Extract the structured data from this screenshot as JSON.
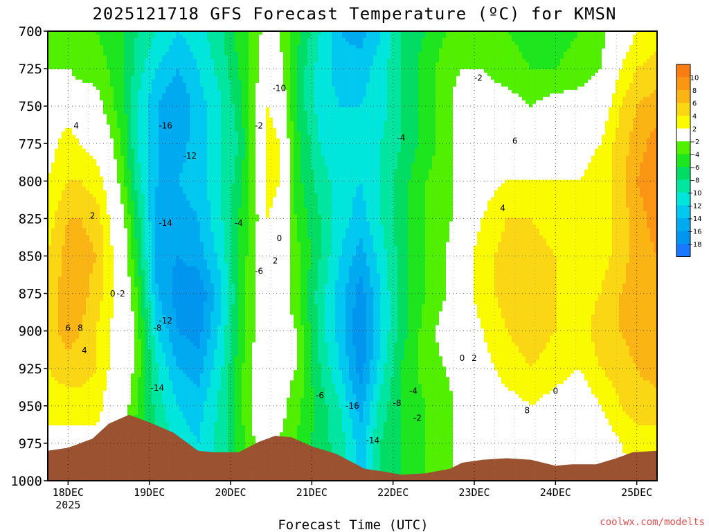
{
  "chart_data": {
    "type": "heatmap",
    "title": "2025121718 GFS Forecast Temperature (ºC) for KMSN",
    "xlabel": "Forecast Time (UTC)",
    "ylabel": "",
    "credit": "coolwx.com/modelts",
    "y_ticks": [
      "700",
      "725",
      "750",
      "775",
      "800",
      "825",
      "850",
      "875",
      "900",
      "925",
      "950",
      "975",
      "1000"
    ],
    "ylim": [
      1000,
      700
    ],
    "x_ticks": [
      "18DEC",
      "19DEC",
      "20DEC",
      "21DEC",
      "22DEC",
      "23DEC",
      "24DEC",
      "25DEC"
    ],
    "x_tick_sublabels": [
      "2025",
      "",
      "",
      "",
      "",
      "",
      "",
      ""
    ],
    "xlim_days": [
      17.75,
      25.25
    ],
    "grid": true,
    "colorbar": {
      "tick_labels": [
        "10",
        "8",
        "6",
        "4",
        "2",
        "−2",
        "−4",
        "−6",
        "−8",
        "−10",
        "−12",
        "−14",
        "−16",
        "−18"
      ],
      "bands": [
        {
          "min": 10,
          "max": 12,
          "color": "#fa7d14"
        },
        {
          "min": 8,
          "max": 10,
          "color": "#fa9614"
        },
        {
          "min": 6,
          "max": 8,
          "color": "#fab414"
        },
        {
          "min": 4,
          "max": 6,
          "color": "#fad614"
        },
        {
          "min": 2,
          "max": 4,
          "color": "#fafa00"
        },
        {
          "min": -2,
          "max": 2,
          "color": "#ffffff"
        },
        {
          "min": -4,
          "max": -2,
          "color": "#50f000"
        },
        {
          "min": -6,
          "max": -4,
          "color": "#1ee61e"
        },
        {
          "min": -8,
          "max": -6,
          "color": "#00dc64"
        },
        {
          "min": -10,
          "max": -8,
          "color": "#00e6a0"
        },
        {
          "min": -12,
          "max": -10,
          "color": "#00e6dc"
        },
        {
          "min": -14,
          "max": -12,
          "color": "#00c8f0"
        },
        {
          "min": -16,
          "max": -14,
          "color": "#00aaf0"
        },
        {
          "min": -18,
          "max": -16,
          "color": "#0096f0"
        },
        {
          "min": -20,
          "max": -18,
          "color": "#1a78ff"
        }
      ]
    },
    "terrain_color": "#9b5230",
    "freezing_contour_color": "#c0207a",
    "contour_labels": [
      "4",
      "2",
      "0",
      "-2",
      "-16",
      "-12",
      "-14",
      "-8",
      "-4",
      "-6",
      "-10",
      "-2",
      "0",
      "2",
      "4",
      "6",
      "8",
      "-14",
      "-16",
      "-6",
      "-8",
      "-4",
      "-2",
      "0",
      "2",
      "4",
      "6",
      "8",
      "0",
      "-4",
      "-2",
      "-12",
      "-14"
    ],
    "profiles": [
      {
        "day": 17.75,
        "temps": [
          -4,
          -2,
          0,
          1,
          2,
          3,
          4,
          5,
          5,
          4,
          3,
          1,
          0
        ]
      },
      {
        "day": 18.0,
        "temps": [
          -4,
          -2,
          1,
          3,
          4,
          6,
          7,
          7,
          7,
          5,
          3,
          1,
          0
        ]
      },
      {
        "day": 18.15,
        "temps": [
          -4,
          -3,
          0,
          2,
          4,
          6,
          7,
          7,
          6,
          5,
          3,
          1,
          0
        ]
      },
      {
        "day": 18.35,
        "temps": [
          -4,
          -3,
          -1,
          1,
          3,
          5,
          6,
          5,
          4,
          4,
          3,
          1,
          0
        ]
      },
      {
        "day": 18.5,
        "temps": [
          -5,
          -4,
          -3,
          -1,
          1,
          2,
          3,
          3,
          2,
          2,
          1,
          0,
          -1
        ]
      },
      {
        "day": 18.7,
        "temps": [
          -6,
          -6,
          -6,
          -5,
          -4,
          -2,
          -1,
          0,
          1,
          0,
          -1,
          -2,
          -2
        ]
      },
      {
        "day": 18.85,
        "temps": [
          -8,
          -9,
          -10,
          -10,
          -9,
          -7,
          -6,
          -4,
          -3,
          -3,
          -4,
          -5,
          -5
        ]
      },
      {
        "day": 19.1,
        "temps": [
          -10,
          -12,
          -14,
          -14,
          -14,
          -15,
          -15,
          -14,
          -12,
          -10,
          -9,
          -8,
          -8
        ]
      },
      {
        "day": 19.35,
        "temps": [
          -12,
          -14,
          -16,
          -15,
          -14,
          -15,
          -16,
          -17,
          -16,
          -14,
          -12,
          -11,
          -11
        ]
      },
      {
        "day": 19.6,
        "temps": [
          -11,
          -12,
          -13,
          -13,
          -13,
          -14,
          -15,
          -18,
          -17,
          -15,
          -13,
          -12,
          -12
        ]
      },
      {
        "day": 19.9,
        "temps": [
          -8,
          -9,
          -10,
          -10,
          -10,
          -10,
          -11,
          -12,
          -11,
          -10,
          -9,
          -9,
          -9
        ]
      },
      {
        "day": 20.1,
        "temps": [
          -5,
          -6,
          -7,
          -8,
          -7,
          -6,
          -6,
          -6,
          -6,
          -5,
          -5,
          -5,
          -5
        ]
      },
      {
        "day": 20.3,
        "temps": [
          -3,
          -3,
          -2,
          -2,
          -2,
          -3,
          -2,
          -2,
          -2,
          -1,
          -1,
          -2,
          -2
        ]
      },
      {
        "day": 20.45,
        "temps": [
          -1,
          0,
          2,
          3,
          3,
          2,
          1,
          1,
          0,
          0,
          0,
          -1,
          -1
        ]
      },
      {
        "day": 20.6,
        "temps": [
          -2,
          -1,
          1,
          2,
          2,
          1,
          1,
          0,
          -1,
          -1,
          -1,
          -2,
          -2
        ]
      },
      {
        "day": 20.8,
        "temps": [
          -5,
          -6,
          -6,
          -5,
          -5,
          -4,
          -3,
          -3,
          -2,
          -2,
          -3,
          -4,
          -4
        ]
      },
      {
        "day": 21.1,
        "temps": [
          -10,
          -11,
          -11,
          -10,
          -9,
          -8,
          -8,
          -9,
          -9,
          -8,
          -7,
          -7,
          -7
        ]
      },
      {
        "day": 21.35,
        "temps": [
          -14,
          -13,
          -12,
          -12,
          -11,
          -11,
          -12,
          -13,
          -13,
          -12,
          -10,
          -9,
          -9
        ]
      },
      {
        "day": 21.6,
        "temps": [
          -15,
          -13,
          -12,
          -12,
          -12,
          -13,
          -15,
          -17,
          -18,
          -17,
          -15,
          -13,
          -13
        ]
      },
      {
        "day": 21.85,
        "temps": [
          -12,
          -11,
          -11,
          -10,
          -10,
          -10,
          -11,
          -12,
          -12,
          -11,
          -9,
          -8,
          -8
        ]
      },
      {
        "day": 22.1,
        "temps": [
          -8,
          -8,
          -8,
          -8,
          -7,
          -7,
          -7,
          -7,
          -7,
          -6,
          -6,
          -6,
          -6
        ]
      },
      {
        "day": 22.4,
        "temps": [
          -6,
          -5,
          -5,
          -5,
          -4,
          -4,
          -4,
          -4,
          -3,
          -3,
          -4,
          -4,
          -4
        ]
      },
      {
        "day": 22.65,
        "temps": [
          -4,
          -3,
          -3,
          -3,
          -3,
          -3,
          -2,
          -2,
          -1,
          -2,
          -3,
          -3,
          -3
        ]
      },
      {
        "day": 22.85,
        "temps": [
          -3,
          -2,
          0,
          0,
          0,
          0,
          1,
          1,
          0,
          0,
          -1,
          -1,
          -1
        ]
      },
      {
        "day": 23.1,
        "temps": [
          -3,
          -2,
          -1,
          0,
          1,
          2,
          3,
          3,
          2,
          1,
          0,
          -1,
          -1
        ]
      },
      {
        "day": 23.4,
        "temps": [
          -4,
          -3,
          -1,
          0,
          2,
          4,
          5,
          5,
          4,
          3,
          1,
          0,
          0
        ]
      },
      {
        "day": 23.7,
        "temps": [
          -5,
          -4,
          -2,
          -1,
          2,
          4,
          5,
          5,
          5,
          4,
          2,
          0,
          0
        ]
      },
      {
        "day": 24.0,
        "temps": [
          -5,
          -4,
          -1,
          0,
          2,
          3,
          4,
          4,
          4,
          3,
          1,
          0,
          -1
        ]
      },
      {
        "day": 24.3,
        "temps": [
          -4,
          -3,
          -1,
          1,
          2,
          3,
          3,
          3,
          3,
          2,
          0,
          -2,
          -2
        ]
      },
      {
        "day": 24.55,
        "temps": [
          -3,
          -2,
          0,
          2,
          3,
          3,
          3,
          4,
          5,
          4,
          2,
          0,
          0
        ]
      },
      {
        "day": 24.8,
        "temps": [
          0,
          2,
          4,
          5,
          5,
          5,
          5,
          6,
          6,
          5,
          4,
          2,
          1
        ]
      },
      {
        "day": 25.0,
        "temps": [
          2,
          4,
          6,
          7,
          8,
          7,
          7,
          7,
          7,
          6,
          5,
          3,
          2
        ]
      },
      {
        "day": 25.25,
        "temps": [
          3,
          5,
          7,
          9,
          10,
          9,
          8,
          8,
          8,
          7,
          5,
          3,
          2
        ]
      }
    ],
    "surface_pressure": [
      {
        "day": 17.75,
        "p": 980
      },
      {
        "day": 18.0,
        "p": 978
      },
      {
        "day": 18.3,
        "p": 972
      },
      {
        "day": 18.5,
        "p": 962
      },
      {
        "day": 18.75,
        "p": 956
      },
      {
        "day": 19.0,
        "p": 961
      },
      {
        "day": 19.3,
        "p": 968
      },
      {
        "day": 19.6,
        "p": 980
      },
      {
        "day": 19.8,
        "p": 981
      },
      {
        "day": 20.1,
        "p": 981
      },
      {
        "day": 20.35,
        "p": 974
      },
      {
        "day": 20.55,
        "p": 970
      },
      {
        "day": 20.75,
        "p": 971
      },
      {
        "day": 21.0,
        "p": 977
      },
      {
        "day": 21.3,
        "p": 982
      },
      {
        "day": 21.65,
        "p": 992
      },
      {
        "day": 21.9,
        "p": 994
      },
      {
        "day": 22.1,
        "p": 996
      },
      {
        "day": 22.4,
        "p": 995
      },
      {
        "day": 22.7,
        "p": 992
      },
      {
        "day": 22.85,
        "p": 988
      },
      {
        "day": 23.1,
        "p": 986
      },
      {
        "day": 23.4,
        "p": 985
      },
      {
        "day": 23.7,
        "p": 986
      },
      {
        "day": 24.0,
        "p": 990
      },
      {
        "day": 24.2,
        "p": 989
      },
      {
        "day": 24.5,
        "p": 989
      },
      {
        "day": 24.75,
        "p": 985
      },
      {
        "day": 24.95,
        "p": 981
      },
      {
        "day": 25.25,
        "p": 980
      }
    ]
  }
}
